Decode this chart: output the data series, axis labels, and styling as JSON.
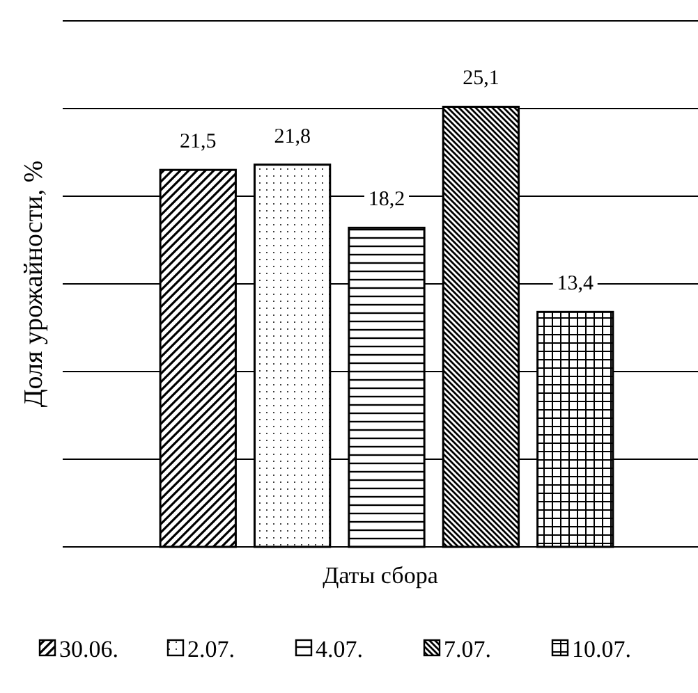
{
  "chart_data": {
    "type": "bar",
    "xlabel": "Даты сбора",
    "ylabel": "Доля урожайности,  %",
    "categories": [
      null
    ],
    "series": [
      {
        "name": "30.06.",
        "color": "#000000",
        "values": [
          21.5
        ],
        "value_labels": [
          "21,5"
        ]
      },
      {
        "name": "2.07.",
        "color": "#000000",
        "values": [
          21.8
        ],
        "value_labels": [
          "21,8"
        ]
      },
      {
        "name": "4.07.",
        "color": "#000000",
        "values": [
          18.2
        ],
        "value_labels": [
          "18,2"
        ]
      },
      {
        "name": "7.07.",
        "color": "#000000",
        "values": [
          25.1
        ],
        "value_labels": [
          "25,1"
        ]
      },
      {
        "name": "10.07.",
        "color": "#000000",
        "values": [
          13.4
        ],
        "value_labels": [
          "13,4"
        ]
      }
    ],
    "ylim": [
      0,
      30
    ],
    "yticks": [
      {
        "value": 0,
        "label": null
      },
      {
        "value": 5,
        "label": null
      },
      {
        "value": 10,
        "label": null
      },
      {
        "value": 15,
        "label": null
      },
      {
        "value": 20,
        "label": null
      },
      {
        "value": 25,
        "label": null
      },
      {
        "value": 30,
        "label": null
      }
    ],
    "grid": "y",
    "legend": "bottom"
  }
}
